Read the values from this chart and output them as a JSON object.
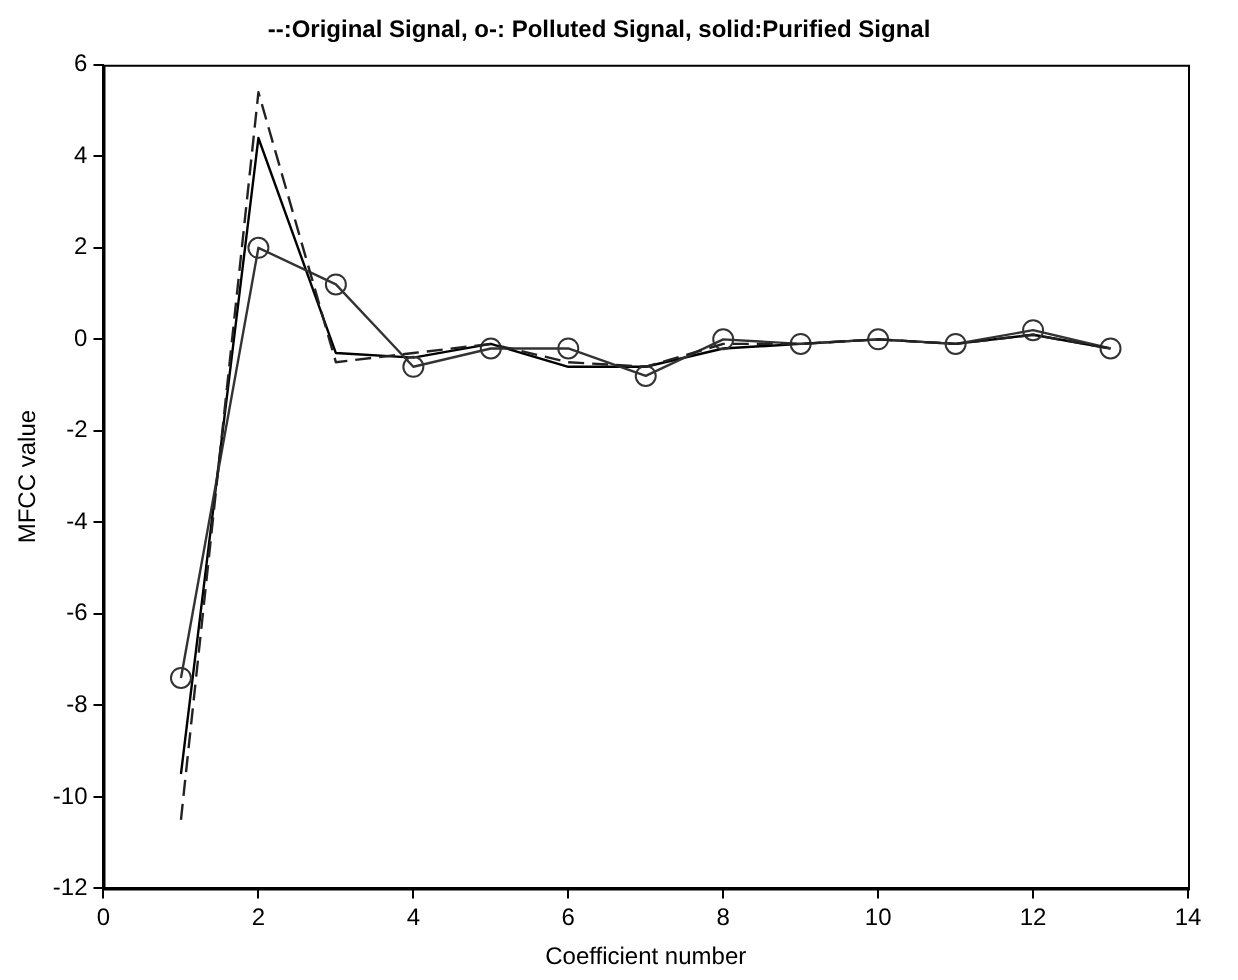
{
  "chart_data": {
    "type": "line",
    "title": "--:Original Signal, o-: Polluted Signal, solid:Purified Signal",
    "xlabel": "Coefficient number",
    "ylabel": "MFCC value",
    "x": [
      1,
      2,
      3,
      4,
      5,
      6,
      7,
      8,
      9,
      10,
      11,
      12,
      13
    ],
    "xlim": [
      0,
      14
    ],
    "xticks": [
      0,
      2,
      4,
      6,
      8,
      10,
      12,
      14
    ],
    "ylim": [
      -12,
      6
    ],
    "yticks": [
      -12,
      -10,
      -8,
      -6,
      -4,
      -2,
      0,
      2,
      4,
      6
    ],
    "grid": false,
    "legend": false,
    "series": [
      {
        "color": "#222222",
        "line_style": "dashed",
        "marker": "none",
        "values": [
          -10.5,
          5.4,
          -0.5,
          -0.3,
          -0.1,
          -0.5,
          -0.6,
          -0.1,
          -0.1,
          0,
          -0.1,
          0.1,
          -0.2
        ]
      },
      {
        "color": "#333333",
        "line_style": "solid",
        "marker": "circle",
        "values": [
          -7.4,
          2.0,
          1.2,
          -0.6,
          -0.2,
          -0.2,
          -0.8,
          0,
          -0.1,
          0,
          -0.1,
          0.2,
          -0.2
        ]
      },
      {
        "color": "#000000",
        "line_style": "solid",
        "marker": "none",
        "values": [
          -9.5,
          4.4,
          -0.3,
          -0.4,
          -0.1,
          -0.6,
          -0.6,
          -0.2,
          -0.1,
          0,
          -0.1,
          0.1,
          -0.2
        ]
      }
    ]
  }
}
